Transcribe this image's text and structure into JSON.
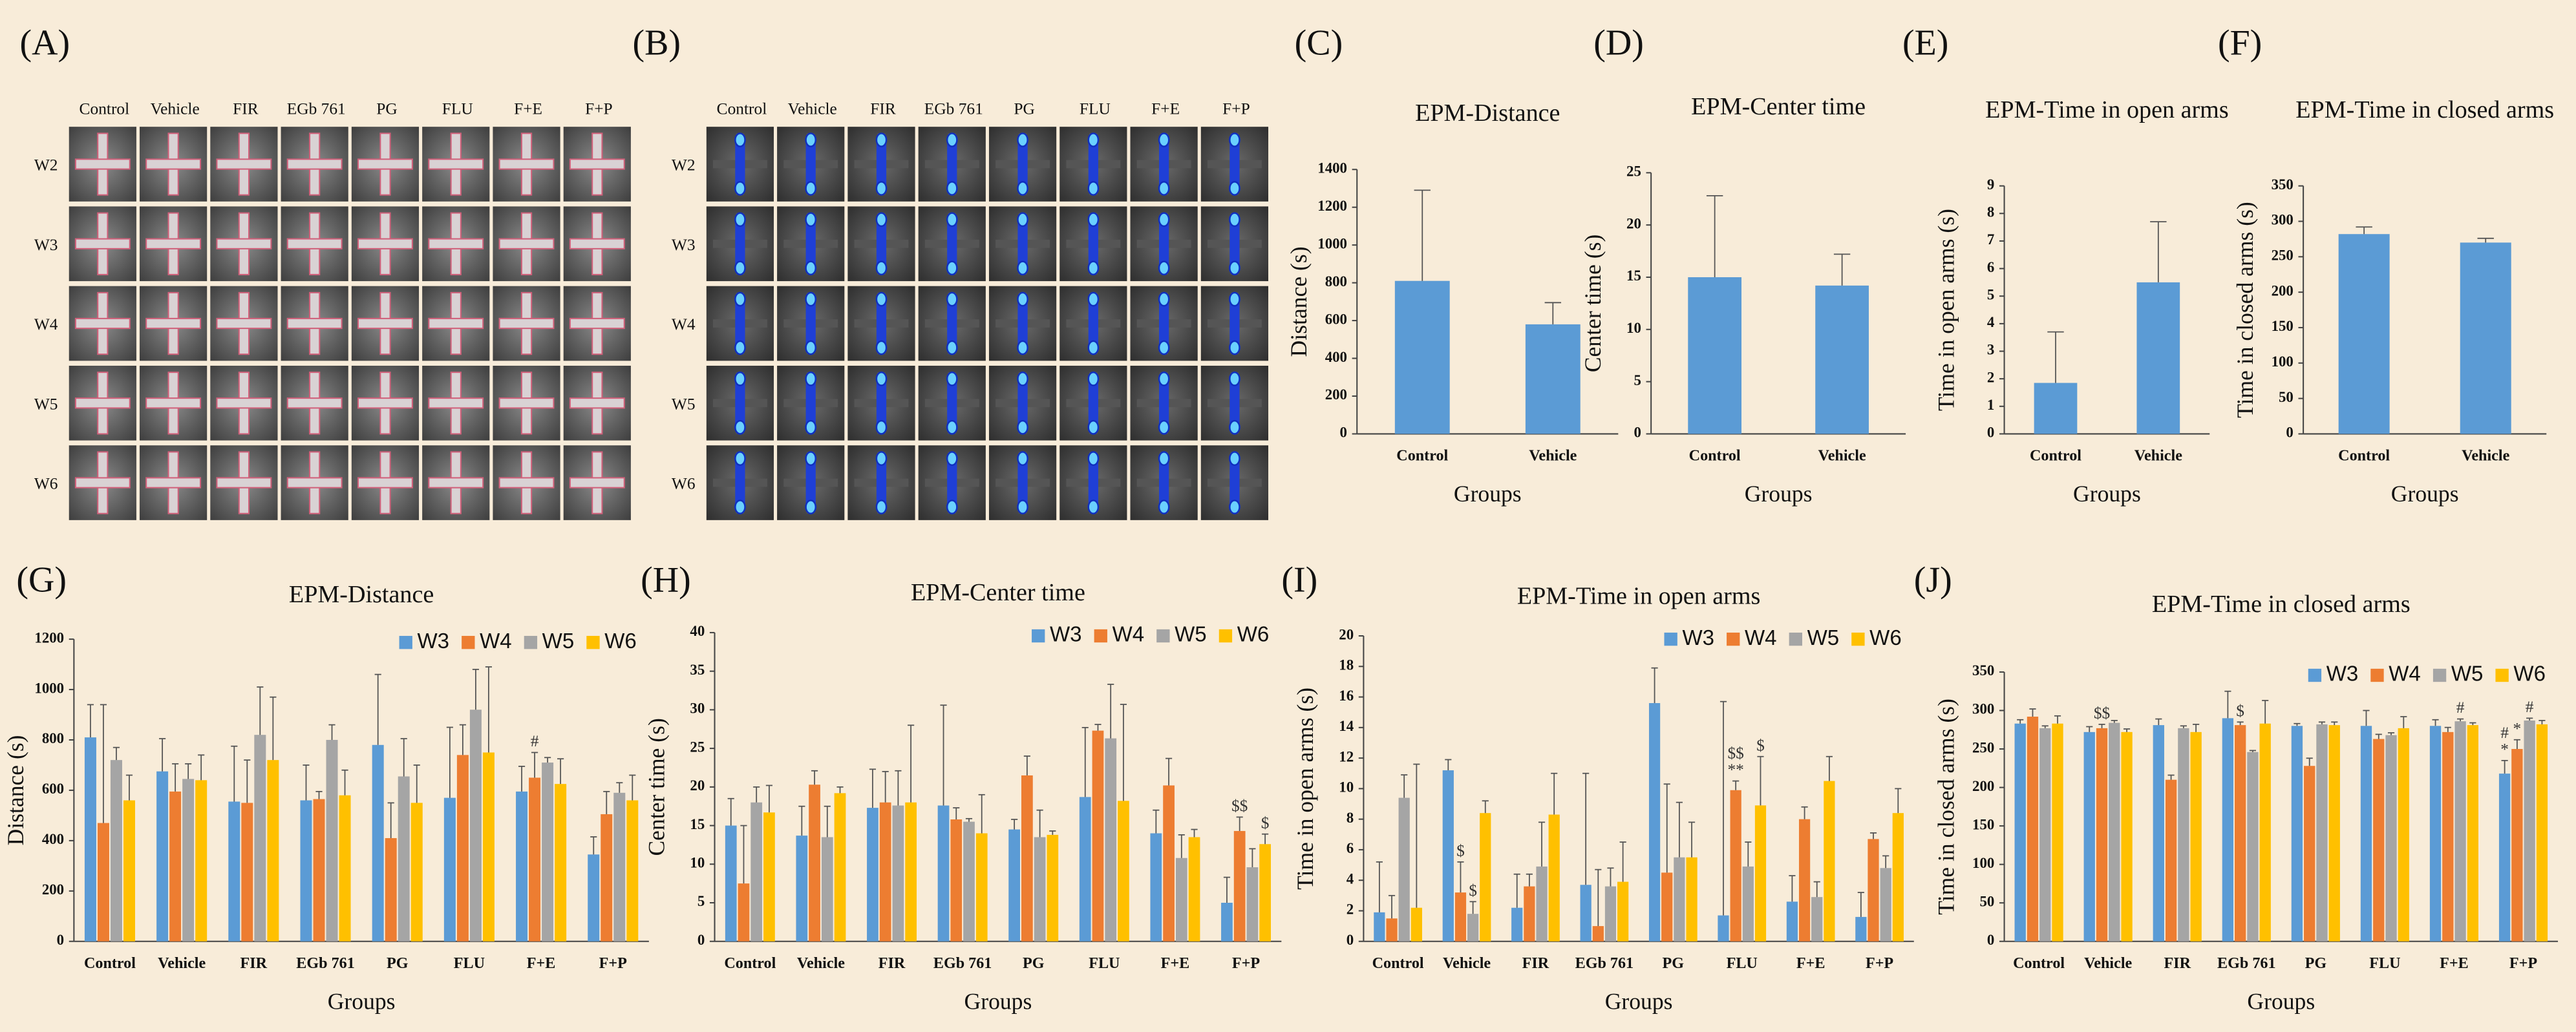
{
  "image_grids": [
    {
      "label": "(A)",
      "columns": [
        "Control",
        "Vehicle",
        "FIR",
        "EGb 761",
        "PG",
        "FLU",
        "F+E",
        "F+P"
      ],
      "rows": [
        "W2",
        "W3",
        "W4",
        "W5",
        "W6"
      ]
    },
    {
      "label": "(B)",
      "columns": [
        "Control",
        "Vehicle",
        "FIR",
        "EGb 761",
        "PG",
        "FLU",
        "F+E",
        "F+P"
      ],
      "rows": [
        "W2",
        "W3",
        "W4",
        "W5",
        "W6"
      ]
    }
  ],
  "chart_data": [
    {
      "type": "bar",
      "panel_label": "(C)",
      "title": "EPM-Distance",
      "x_label": "Groups",
      "y_label": "Distance (s)",
      "categories": [
        "Control",
        "Vehicle"
      ],
      "values": [
        810,
        580
      ],
      "errors": [
        480,
        115
      ],
      "color": "#5b9bd5",
      "ylim": [
        0,
        1400
      ],
      "yticks": [
        0,
        200,
        400,
        600,
        800,
        1000,
        1200,
        1400
      ]
    },
    {
      "type": "bar",
      "panel_label": "(D)",
      "title": "EPM-Center time",
      "x_label": "Groups",
      "y_label": "Center time (s)",
      "categories": [
        "Control",
        "Vehicle"
      ],
      "values": [
        15,
        14.2
      ],
      "errors": [
        7.8,
        3
      ],
      "color": "#5b9bd5",
      "ylim": [
        0,
        25
      ],
      "yticks": [
        0,
        5,
        10,
        15,
        20,
        25
      ]
    },
    {
      "type": "bar",
      "panel_label": "(E)",
      "title": "EPM-Time in open arms",
      "x_label": "Groups",
      "y_label": "Time in open arms (s)",
      "categories": [
        "Control",
        "Vehicle"
      ],
      "values": [
        1.85,
        5.5
      ],
      "errors": [
        1.85,
        2.2
      ],
      "color": "#5b9bd5",
      "ylim": [
        0,
        9
      ],
      "yticks": [
        0,
        1,
        2,
        3,
        4,
        5,
        6,
        7,
        8,
        9
      ]
    },
    {
      "type": "bar",
      "panel_label": "(F)",
      "title": "EPM-Time in closed arms",
      "x_label": "Groups",
      "y_label": "Time in closed arms (s)",
      "categories": [
        "Control",
        "Vehicle"
      ],
      "values": [
        282,
        270
      ],
      "errors": [
        10,
        6
      ],
      "color": "#5b9bd5",
      "ylim": [
        0,
        350
      ],
      "yticks": [
        0,
        50,
        100,
        150,
        200,
        250,
        300,
        350
      ]
    },
    {
      "type": "bar",
      "panel_label": "(G)",
      "title": "EPM-Distance",
      "x_label": "Groups",
      "y_label": "Distance (s)",
      "legend": "top-right",
      "categories": [
        "Control",
        "Vehicle",
        "FIR",
        "EGb 761",
        "PG",
        "FLU",
        "F+E",
        "F+P"
      ],
      "ylim": [
        0,
        1200
      ],
      "yticks": [
        0,
        200,
        400,
        600,
        800,
        1000,
        1200
      ],
      "series": [
        {
          "name": "W3",
          "color": "#5b9bd5",
          "values": [
            810,
            675,
            555,
            560,
            780,
            570,
            595,
            345
          ],
          "errors": [
            130,
            130,
            220,
            140,
            280,
            280,
            100,
            70
          ],
          "annotations": [
            null,
            null,
            null,
            null,
            null,
            null,
            null,
            null
          ]
        },
        {
          "name": "W4",
          "color": "#ed7d31",
          "values": [
            470,
            595,
            550,
            565,
            410,
            740,
            650,
            505
          ],
          "errors": [
            470,
            110,
            170,
            30,
            140,
            120,
            100,
            90
          ],
          "annotations": [
            null,
            null,
            null,
            null,
            null,
            null,
            [
              "#"
            ],
            null
          ]
        },
        {
          "name": "W5",
          "color": "#a5a5a5",
          "values": [
            720,
            645,
            820,
            800,
            655,
            920,
            710,
            590
          ],
          "errors": [
            50,
            60,
            190,
            60,
            150,
            160,
            20,
            40
          ],
          "annotations": [
            null,
            null,
            null,
            null,
            null,
            null,
            null,
            null
          ]
        },
        {
          "name": "W6",
          "color": "#ffc000",
          "values": [
            560,
            640,
            720,
            580,
            550,
            750,
            625,
            560
          ],
          "errors": [
            100,
            100,
            250,
            100,
            150,
            340,
            100,
            100
          ],
          "annotations": [
            null,
            null,
            null,
            null,
            null,
            null,
            null,
            null
          ]
        }
      ]
    },
    {
      "type": "bar",
      "panel_label": "(H)",
      "title": "EPM-Center time",
      "x_label": "Groups",
      "y_label": "Center time (s)",
      "legend": "top-right",
      "categories": [
        "Control",
        "Vehicle",
        "FIR",
        "EGb 761",
        "PG",
        "FLU",
        "F+E",
        "F+P"
      ],
      "ylim": [
        0,
        40
      ],
      "yticks": [
        0,
        5,
        10,
        15,
        20,
        25,
        30,
        35,
        40
      ],
      "series": [
        {
          "name": "W3",
          "color": "#5b9bd5",
          "values": [
            15,
            13.7,
            17.3,
            17.6,
            14.5,
            18.7,
            14,
            5
          ],
          "errors": [
            3.5,
            3.8,
            5,
            13,
            1.3,
            9,
            3,
            3.3
          ],
          "annotations": [
            null,
            null,
            null,
            null,
            null,
            null,
            null,
            null
          ]
        },
        {
          "name": "W4",
          "color": "#ed7d31",
          "values": [
            7.5,
            20.3,
            18,
            15.8,
            21.5,
            27.3,
            20.2,
            14.3
          ],
          "errors": [
            7.5,
            1.8,
            4,
            1.5,
            2.5,
            0.8,
            3.5,
            1.8
          ],
          "annotations": [
            null,
            null,
            null,
            null,
            null,
            null,
            null,
            [
              "$$"
            ]
          ]
        },
        {
          "name": "W5",
          "color": "#a5a5a5",
          "values": [
            18,
            13.5,
            17.6,
            15.5,
            13.5,
            26.3,
            10.8,
            9.6
          ],
          "errors": [
            2,
            4,
            4.5,
            0.4,
            3.5,
            7,
            3,
            2.4
          ],
          "annotations": [
            null,
            null,
            null,
            null,
            null,
            null,
            null,
            null
          ]
        },
        {
          "name": "W6",
          "color": "#ffc000",
          "values": [
            16.7,
            19.2,
            18,
            14,
            13.8,
            18.2,
            13.5,
            12.6
          ],
          "errors": [
            3.5,
            0.8,
            10,
            5,
            0.5,
            12.5,
            1,
            1.3
          ],
          "annotations": [
            null,
            null,
            null,
            null,
            null,
            null,
            null,
            [
              "$"
            ]
          ]
        }
      ]
    },
    {
      "type": "bar",
      "panel_label": "(I)",
      "title": "EPM-Time in open arms",
      "x_label": "Groups",
      "y_label": "Time in open arms (s)",
      "legend": "top-right",
      "categories": [
        "Control",
        "Vehicle",
        "FIR",
        "EGb 761",
        "PG",
        "FLU",
        "F+E",
        "F+P"
      ],
      "ylim": [
        0,
        20
      ],
      "yticks": [
        0,
        2,
        4,
        6,
        8,
        10,
        12,
        14,
        16,
        18,
        20
      ],
      "series": [
        {
          "name": "W3",
          "color": "#5b9bd5",
          "values": [
            1.9,
            11.2,
            2.2,
            3.7,
            15.6,
            1.7,
            2.6,
            1.6
          ],
          "errors": [
            3.3,
            0.7,
            2.2,
            7.3,
            2.3,
            14,
            1.7,
            1.6
          ],
          "annotations": [
            null,
            null,
            null,
            null,
            null,
            null,
            null,
            null
          ]
        },
        {
          "name": "W4",
          "color": "#ed7d31",
          "values": [
            1.5,
            3.2,
            3.6,
            1.0,
            4.5,
            9.9,
            8.0,
            6.7
          ],
          "errors": [
            1.5,
            2,
            0.8,
            3.7,
            5.8,
            0.6,
            0.8,
            0.4
          ],
          "annotations": [
            null,
            [
              "$"
            ],
            null,
            null,
            null,
            [
              "$$",
              "**"
            ],
            null,
            null
          ]
        },
        {
          "name": "W5",
          "color": "#a5a5a5",
          "values": [
            9.4,
            1.8,
            4.9,
            3.6,
            5.5,
            4.9,
            2.9,
            4.8
          ],
          "errors": [
            1.5,
            0.8,
            2.9,
            1.2,
            3.6,
            1.6,
            1,
            0.8
          ],
          "annotations": [
            null,
            [
              "$"
            ],
            null,
            null,
            null,
            null,
            null,
            null
          ]
        },
        {
          "name": "W6",
          "color": "#ffc000",
          "values": [
            2.2,
            8.4,
            8.3,
            3.9,
            5.5,
            8.9,
            10.5,
            8.4
          ],
          "errors": [
            9.4,
            0.8,
            2.7,
            2.6,
            2.3,
            3.2,
            1.6,
            1.6
          ],
          "annotations": [
            null,
            null,
            null,
            null,
            null,
            [
              "$"
            ],
            null,
            null
          ]
        }
      ]
    },
    {
      "type": "bar",
      "panel_label": "(J)",
      "title": "EPM-Time in closed arms",
      "x_label": "Groups",
      "y_label": "Time in closed arms (s)",
      "legend": "top-right",
      "categories": [
        "Control",
        "Vehicle",
        "FIR",
        "EGb 761",
        "PG",
        "FLU",
        "F+E",
        "F+P"
      ],
      "ylim": [
        0,
        350
      ],
      "yticks": [
        0,
        50,
        100,
        150,
        200,
        250,
        300,
        350
      ],
      "series": [
        {
          "name": "W3",
          "color": "#5b9bd5",
          "values": [
            283,
            272,
            281,
            290,
            280,
            280,
            280,
            218
          ],
          "errors": [
            5,
            7,
            8,
            35,
            3,
            20,
            8,
            17
          ],
          "annotations": [
            null,
            null,
            null,
            null,
            null,
            null,
            null,
            [
              "#",
              "*"
            ]
          ]
        },
        {
          "name": "W4",
          "color": "#ed7d31",
          "values": [
            292,
            277,
            210,
            281,
            228,
            263,
            272,
            250
          ],
          "errors": [
            10,
            5,
            6,
            4,
            10,
            6,
            6,
            12
          ],
          "annotations": [
            null,
            [
              "$$"
            ],
            null,
            [
              "$"
            ],
            null,
            null,
            null,
            [
              "*"
            ]
          ]
        },
        {
          "name": "W5",
          "color": "#a5a5a5",
          "values": [
            277,
            284,
            277,
            246,
            282,
            268,
            286,
            287
          ],
          "errors": [
            3,
            3,
            3,
            2,
            3,
            3,
            3,
            3
          ],
          "annotations": [
            null,
            null,
            null,
            null,
            null,
            null,
            [
              "#"
            ],
            [
              "#"
            ]
          ]
        },
        {
          "name": "W6",
          "color": "#ffc000",
          "values": [
            283,
            272,
            272,
            283,
            281,
            277,
            281,
            282
          ],
          "errors": [
            10,
            4,
            10,
            30,
            4,
            15,
            3,
            5
          ],
          "annotations": [
            null,
            null,
            null,
            null,
            null,
            null,
            null,
            null
          ]
        }
      ]
    }
  ]
}
